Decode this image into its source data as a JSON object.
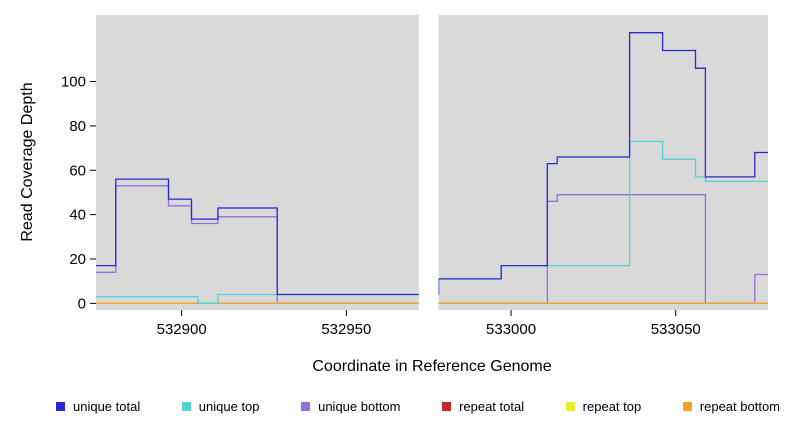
{
  "chart_data": {
    "type": "line",
    "subtype": "step",
    "title": "",
    "xlabel": "Coordinate in Reference Genome",
    "ylabel": "Read Coverage Depth",
    "xlim": [
      532874,
      533078
    ],
    "ylim": [
      -3,
      130
    ],
    "x_ticks": [
      532900,
      532950,
      533000,
      533050
    ],
    "y_ticks": [
      0,
      20,
      40,
      60,
      80,
      100
    ],
    "grid": false,
    "legend_position": "bottom",
    "plot_bg": "#D9D9D9",
    "mask_region": {
      "x0": 532972,
      "x1": 532978,
      "color": "#FFFFFF"
    },
    "series": [
      {
        "name": "unique total",
        "color": "#2929CC",
        "points": [
          [
            532874,
            17
          ],
          [
            532880,
            56
          ],
          [
            532896,
            47
          ],
          [
            532903,
            38
          ],
          [
            532911,
            43
          ],
          [
            532929,
            4
          ],
          [
            532972,
            4
          ],
          [
            532978,
            11
          ],
          [
            532997,
            17
          ],
          [
            533011,
            63
          ],
          [
            533014,
            66
          ],
          [
            533036,
            122
          ],
          [
            533046,
            114
          ],
          [
            533056,
            106
          ],
          [
            533059,
            57
          ],
          [
            533074,
            68
          ],
          [
            533078,
            68
          ]
        ]
      },
      {
        "name": "unique top",
        "color": "#4FD4D4",
        "points": [
          [
            532874,
            3
          ],
          [
            532905,
            0
          ],
          [
            532911,
            4
          ],
          [
            532972,
            4
          ],
          [
            532978,
            11
          ],
          [
            532997,
            17
          ],
          [
            533036,
            73
          ],
          [
            533046,
            65
          ],
          [
            533056,
            57
          ],
          [
            533059,
            55
          ],
          [
            533078,
            55
          ]
        ]
      },
      {
        "name": "unique bottom",
        "color": "#9370DB",
        "points": [
          [
            532874,
            14
          ],
          [
            532880,
            53
          ],
          [
            532896,
            44
          ],
          [
            532903,
            36
          ],
          [
            532911,
            39
          ],
          [
            532929,
            0
          ],
          [
            532972,
            0
          ],
          [
            532978,
            0
          ],
          [
            533011,
            46
          ],
          [
            533014,
            49
          ],
          [
            533059,
            0
          ],
          [
            533074,
            13
          ],
          [
            533078,
            13
          ]
        ]
      },
      {
        "name": "repeat total",
        "color": "#C62828",
        "points": [
          [
            532874,
            0
          ],
          [
            533078,
            0
          ]
        ]
      },
      {
        "name": "repeat top",
        "color": "#EDED30",
        "points": [
          [
            532874,
            0
          ],
          [
            533078,
            0
          ]
        ]
      },
      {
        "name": "repeat bottom",
        "color": "#F2A22A",
        "points": [
          [
            532874,
            0
          ],
          [
            533078,
            0
          ]
        ]
      }
    ]
  }
}
